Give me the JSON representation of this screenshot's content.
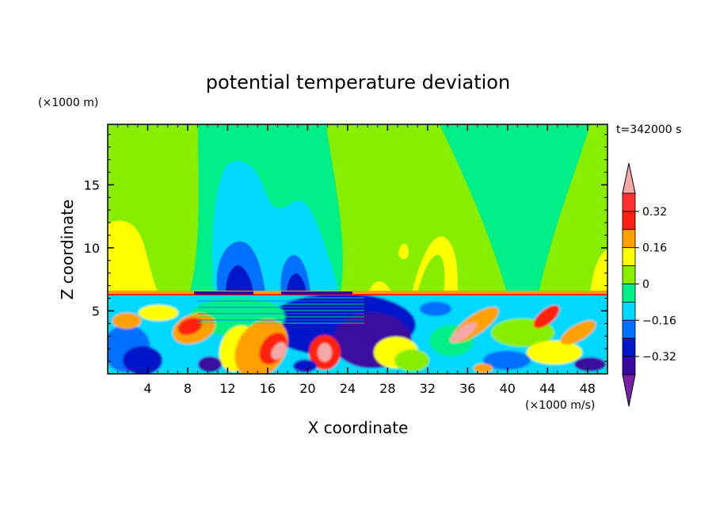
{
  "chart_data": {
    "type": "heatmap",
    "title": "potential temperature deviation",
    "xlabel": "X coordinate",
    "ylabel": "Z coordinate",
    "x_unit": "(×1000 m/s)",
    "y_unit": "(×1000 m)",
    "time_label": "t=342000 s",
    "xlim": [
      0,
      50
    ],
    "ylim": [
      0,
      19.8
    ],
    "x_ticks": [
      4,
      8,
      12,
      16,
      20,
      24,
      28,
      32,
      36,
      40,
      44,
      48
    ],
    "y_ticks": [
      5,
      10,
      15
    ],
    "colorbar": {
      "levels": [
        -0.4,
        -0.32,
        -0.24,
        -0.16,
        -0.08,
        0,
        0.08,
        0.16,
        0.24,
        0.32,
        0.4
      ],
      "tick_labels": [
        "0.32",
        "0.16",
        "0",
        "−0.16",
        "−0.32"
      ],
      "tick_values": [
        0.32,
        0.16,
        0,
        -0.16,
        -0.32
      ],
      "colors": [
        "#7a1fa8",
        "#3a0aa0",
        "#0018c8",
        "#0070ff",
        "#00d8ff",
        "#00ee88",
        "#88ee00",
        "#ffff00",
        "#ffa000",
        "#ff2010",
        "#ff3030",
        "#f5a8a8"
      ],
      "extend": "both"
    },
    "field_notes": {
      "upper_layer_background": "0 to 0.08",
      "strong_positive_regions": "0.32 to 0.4",
      "strong_negative_regions": "-0.4 to -0.32"
    }
  }
}
